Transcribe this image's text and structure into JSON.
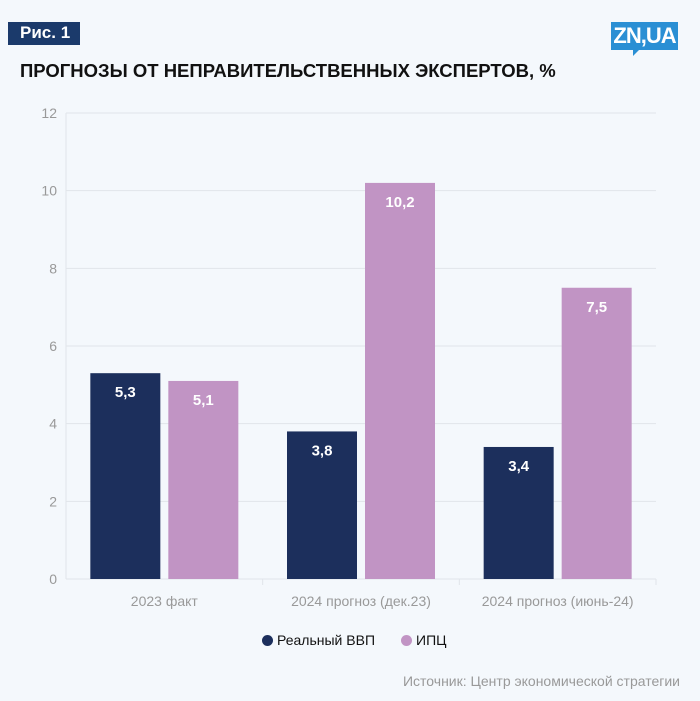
{
  "figure_label": "Рис. 1",
  "logo_text": "ZN,UA",
  "source": "Источник: Центр экономической стратегии",
  "colors": {
    "gdp": "#1c2f5c",
    "cpi": "#c194c4",
    "grid": "#e1e5ea"
  },
  "chart_data": {
    "type": "bar",
    "title": "ПРОГНОЗЫ ОТ НЕПРАВИТЕЛЬСТВЕННЫХ ЭКСПЕРТОВ, %",
    "categories": [
      "2023 факт",
      "2024 прогноз (дек.23)",
      "2024 прогноз (июнь-24)"
    ],
    "series": [
      {
        "name": "Реальный ВВП",
        "values": [
          5.3,
          3.8,
          3.4
        ],
        "labels": [
          "5,3",
          "3,8",
          "3,4"
        ]
      },
      {
        "name": "ИПЦ",
        "values": [
          5.1,
          10.2,
          7.5
        ],
        "labels": [
          "5,1",
          "10,2",
          "7,5"
        ]
      }
    ],
    "ylim": [
      0,
      12
    ],
    "yticks": [
      0,
      2,
      4,
      6,
      8,
      10,
      12
    ],
    "grid": true,
    "legend": "bottom"
  }
}
